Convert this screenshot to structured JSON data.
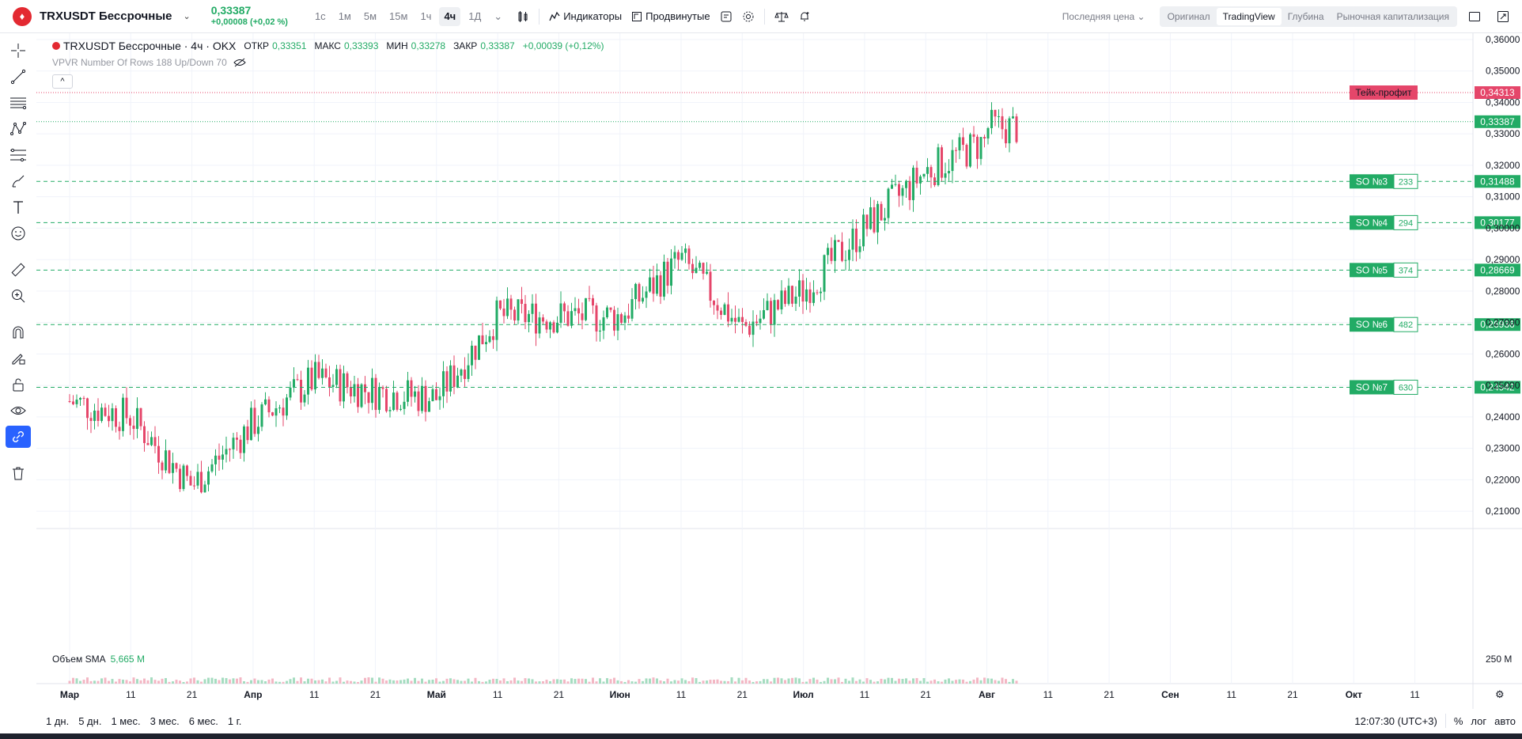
{
  "header": {
    "logo_glyph": "♦",
    "symbol": "TRXUSDT Бессрочные",
    "price": "0,33387",
    "change": "+0,00008 (+0,02 %)",
    "intervals": [
      "1с",
      "1м",
      "5м",
      "15м",
      "1ч",
      "4ч",
      "1Д"
    ],
    "active_interval": "4ч",
    "indicators_label": "Индикаторы",
    "advanced_label": "Продвинутые",
    "last_price_label": "Последняя цена",
    "view_modes": [
      "Оригинал",
      "TradingView",
      "Глубина",
      "Рыночная капитализация"
    ],
    "active_view": "TradingView"
  },
  "legend": {
    "title": "TRXUSDT Бессрочные · 4ч · OKX",
    "open_label": "ОТКР",
    "open": "0,33351",
    "high_label": "МАКС",
    "high": "0,33393",
    "low_label": "МИН",
    "low": "0,33278",
    "close_label": "ЗАКР",
    "close": "0,33387",
    "change": "+0,00039 (+0,12%)",
    "indicator": "VPVR Number Of Rows 188 Up/Down 70",
    "collapse": "^"
  },
  "volume_legend": {
    "label": "Объем SMA",
    "value": "5,665 M",
    "axis_label": "250 M"
  },
  "orders": [
    {
      "label": "Тейк-профит",
      "qty": "",
      "price": "0,34313",
      "color": "#e5466a"
    },
    {
      "label": "SO №3",
      "qty": "233",
      "price": "0,31488",
      "color": "#22ab65"
    },
    {
      "label": "SO №4",
      "qty": "294",
      "price": "0,30177",
      "color": "#22ab65"
    },
    {
      "label": "SO №5",
      "qty": "374",
      "price": "0,28669",
      "color": "#22ab65"
    },
    {
      "label": "SO №6",
      "qty": "482",
      "price": "0,26936",
      "color": "#22ab65"
    },
    {
      "label": "SO №7",
      "qty": "630",
      "price": "0,24942",
      "color": "#22ab65"
    }
  ],
  "current_price_tag": "0,33387",
  "chart_data": {
    "type": "candlestick",
    "y_ticks": [
      "0,36000",
      "0,35000",
      "0,34000",
      "0,33000",
      "0,32000",
      "0,31000",
      "0,30000",
      "0,29000",
      "0,28000",
      "0,27000",
      "0,26000",
      "0,25000",
      "0,24000",
      "0,23000",
      "0,22000",
      "0,21000"
    ],
    "x_ticks": [
      "Мар",
      "11",
      "21",
      "Апр",
      "11",
      "21",
      "Май",
      "11",
      "21",
      "Июн",
      "11",
      "21",
      "Июл",
      "11",
      "21",
      "Авг",
      "11",
      "21",
      "Сен",
      "11",
      "21",
      "Окт",
      "11"
    ],
    "ylim": [
      0.205,
      0.362
    ],
    "approx_close_path": [
      [
        "Мар",
        0.245
      ],
      [
        "11",
        0.24
      ],
      [
        "21",
        0.218
      ],
      [
        "Апр",
        0.238
      ],
      [
        "11",
        0.252
      ],
      [
        "21",
        0.248
      ],
      [
        "Май",
        0.246
      ],
      [
        "11",
        0.272
      ],
      [
        "21",
        0.272
      ],
      [
        "Июн",
        0.272
      ],
      [
        "11",
        0.29
      ],
      [
        "21",
        0.268
      ],
      [
        "Июл",
        0.28
      ],
      [
        "11",
        0.3
      ],
      [
        "21",
        0.318
      ],
      [
        "Авг",
        0.328
      ]
    ],
    "grid": true
  },
  "bottom": {
    "ranges": [
      "1 дн.",
      "5 дн.",
      "1 мес.",
      "3 мес.",
      "6 мес.",
      "1 г."
    ],
    "time": "12:07:30 (UTC+3)",
    "percent": "%",
    "log": "лог",
    "auto": "авто"
  }
}
